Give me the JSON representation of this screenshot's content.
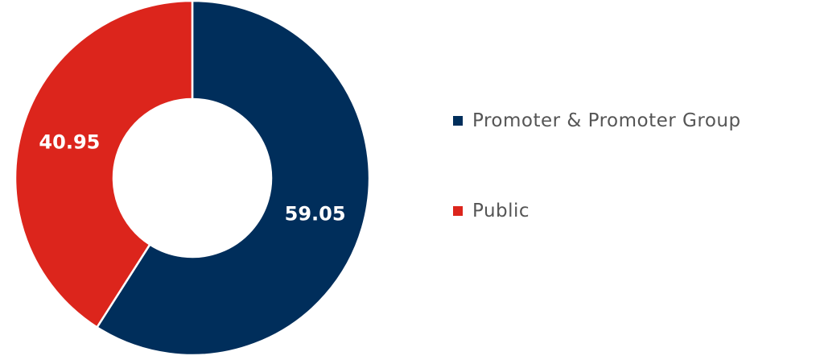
{
  "chart_data": {
    "type": "pie",
    "donut": true,
    "categories": [
      "Promoter & Promoter Group",
      "Public"
    ],
    "values": [
      59.05,
      40.95
    ],
    "colors": [
      "#002e5b",
      "#dc251c"
    ]
  }
}
